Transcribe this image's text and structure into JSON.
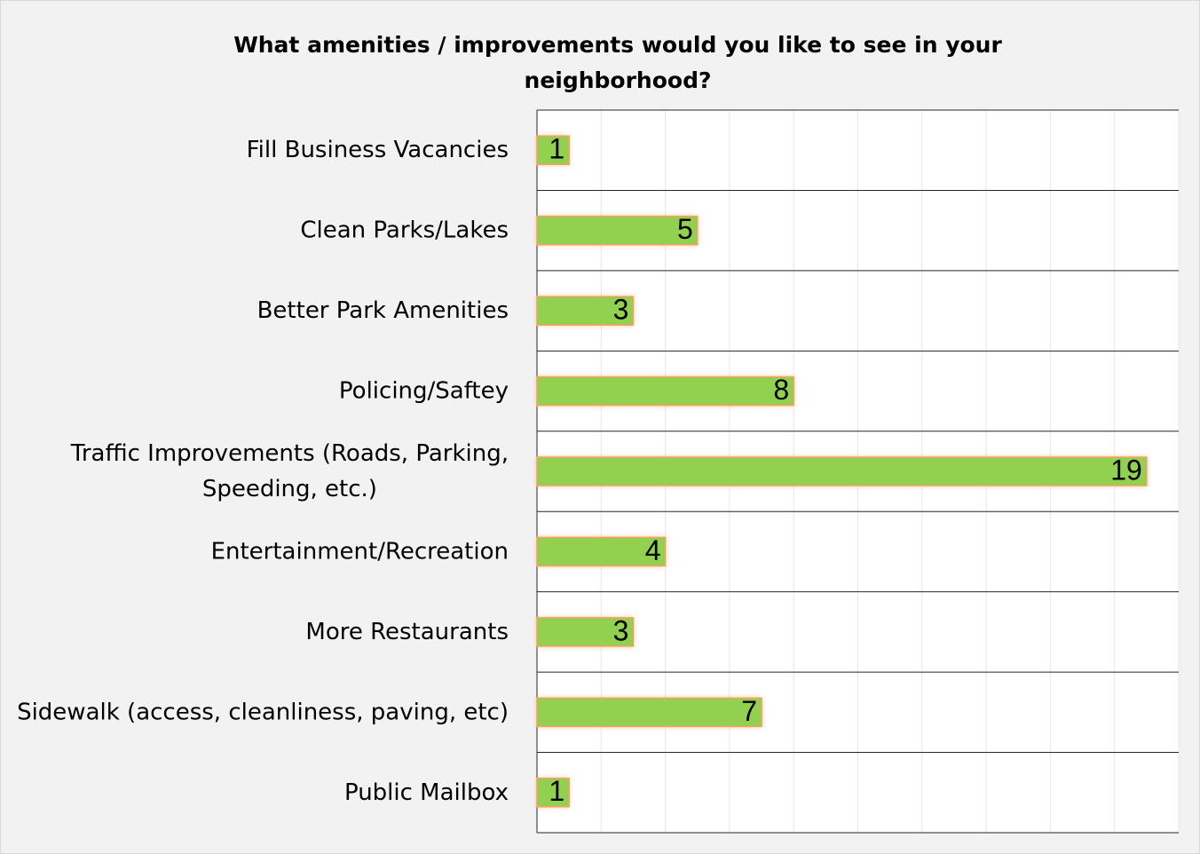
{
  "chart_data": {
    "type": "bar",
    "orientation": "horizontal",
    "title": "What amenities / improvements would you like to see in your neighborhood?",
    "categories": [
      "Fill Business Vacancies",
      "Clean Parks/Lakes",
      "Better Park Amenities",
      "Policing/Saftey",
      "Traffic Improvements (Roads, Parking, Speeding, etc.)",
      "Entertainment/Recreation",
      "More Restaurants",
      "Sidewalk (access, cleanliness, paving, etc)",
      "Public Mailbox"
    ],
    "values": [
      1,
      5,
      3,
      8,
      19,
      4,
      3,
      7,
      1
    ],
    "xlim": [
      0,
      20
    ],
    "grid": true,
    "legend": "none",
    "colors": {
      "bar": "#92d050",
      "bar_glow": "#f4b183",
      "bar_outline": "#f5a25d",
      "plot_bg": "#ffffff",
      "chart_bg": "#f2f2f2",
      "gridline": "#e7e7e7",
      "row_line": "#262626"
    }
  }
}
